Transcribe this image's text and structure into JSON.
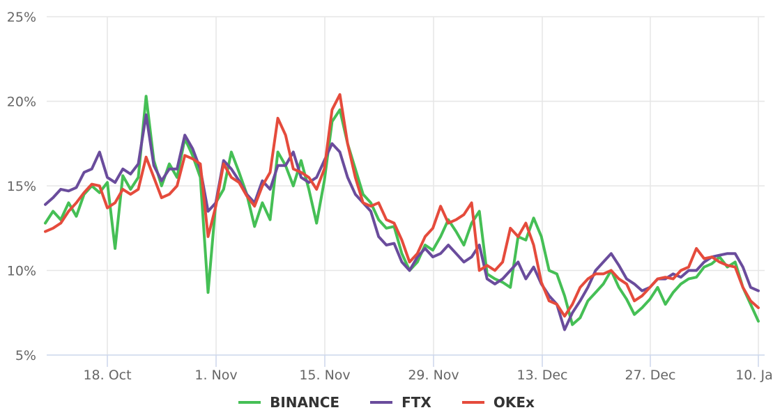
{
  "chart_data": {
    "type": "line",
    "title": "",
    "xlabel": "",
    "ylabel": "",
    "ylim": [
      5,
      25
    ],
    "yticks": [
      "5%",
      "10%",
      "15%",
      "20%",
      "25%"
    ],
    "ytick_values": [
      5,
      10,
      15,
      20,
      25
    ],
    "xticks": [
      "18. Oct",
      "1. Nov",
      "15. Nov",
      "29. Nov",
      "13. Dec",
      "27. Dec",
      "10. Jan"
    ],
    "x_start": "~10. Oct",
    "x_end": "~11. Jan",
    "grid": true,
    "legend_position": "bottom-center",
    "x_days": [
      0,
      1,
      2,
      3,
      4,
      5,
      6,
      7,
      8,
      9,
      10,
      11,
      12,
      13,
      14,
      15,
      16,
      17,
      18,
      19,
      20,
      21,
      22,
      23,
      24,
      25,
      26,
      27,
      28,
      29,
      30,
      31,
      32,
      33,
      34,
      35,
      36,
      37,
      38,
      39,
      40,
      41,
      42,
      43,
      44,
      45,
      46,
      47,
      48,
      49,
      50,
      51,
      52,
      53,
      54,
      55,
      56,
      57,
      58,
      59,
      60,
      61,
      62,
      63,
      64,
      65,
      66,
      67,
      68,
      69,
      70,
      71,
      72,
      73,
      74,
      75,
      76,
      77,
      78,
      79,
      80,
      81,
      82,
      83,
      84,
      85,
      86,
      87,
      88,
      89,
      90,
      91,
      92
    ],
    "series": [
      {
        "name": "BINANCE",
        "color": "#45BF55",
        "values": [
          12.8,
          13.5,
          13.0,
          14.0,
          13.2,
          14.5,
          15.0,
          14.6,
          15.2,
          11.3,
          15.6,
          14.8,
          15.5,
          20.3,
          16.5,
          15.0,
          16.3,
          15.5,
          17.8,
          16.8,
          15.5,
          8.7,
          14.0,
          14.8,
          17.0,
          15.8,
          14.5,
          12.6,
          14.0,
          13.0,
          17.0,
          16.2,
          15.0,
          16.5,
          14.8,
          12.8,
          15.3,
          18.8,
          19.5,
          17.5,
          16.0,
          14.5,
          14.0,
          13.0,
          12.5,
          12.6,
          11.0,
          10.0,
          10.5,
          11.5,
          11.2,
          12.0,
          13.0,
          12.3,
          11.5,
          12.8,
          13.5,
          9.8,
          9.5,
          9.3,
          9.0,
          12.0,
          11.8,
          13.1,
          12.0,
          10.0,
          9.8,
          8.5,
          6.8,
          7.2,
          8.2,
          8.7,
          9.2,
          10.0,
          9.0,
          8.3,
          7.4,
          7.8,
          8.3,
          9.0,
          8.0,
          8.7,
          9.2,
          9.5,
          9.6,
          10.2,
          10.4,
          10.8,
          10.2,
          10.5,
          9.0,
          8.0,
          7.0
        ]
      },
      {
        "name": "FTX",
        "color": "#6A4C9C",
        "values": [
          13.9,
          14.3,
          14.8,
          14.7,
          14.9,
          15.8,
          16.0,
          17.0,
          15.5,
          15.2,
          16.0,
          15.7,
          16.3,
          19.2,
          16.2,
          15.3,
          16.0,
          16.0,
          18.0,
          17.2,
          16.0,
          13.5,
          14.0,
          16.5,
          16.0,
          15.3,
          14.5,
          14.0,
          15.3,
          14.8,
          16.2,
          16.2,
          17.0,
          15.5,
          15.2,
          15.5,
          16.5,
          17.5,
          17.0,
          15.5,
          14.5,
          14.0,
          13.5,
          12.0,
          11.5,
          11.6,
          10.5,
          10.0,
          10.8,
          11.3,
          10.8,
          11.0,
          11.5,
          11.0,
          10.5,
          10.8,
          11.5,
          9.5,
          9.2,
          9.5,
          10.0,
          10.5,
          9.5,
          10.2,
          9.2,
          8.5,
          8.0,
          6.5,
          7.5,
          8.2,
          9.0,
          10.0,
          10.5,
          11.0,
          10.3,
          9.5,
          9.2,
          8.8,
          9.0,
          9.5,
          9.5,
          9.8,
          9.6,
          10.0,
          10.0,
          10.5,
          10.8,
          10.9,
          11.0,
          11.0,
          10.2,
          9.0,
          8.8
        ]
      },
      {
        "name": "OKEx",
        "color": "#E54B3C",
        "values": [
          12.3,
          12.5,
          12.8,
          13.5,
          14.0,
          14.6,
          15.1,
          15.0,
          13.7,
          14.0,
          14.8,
          14.5,
          14.8,
          16.7,
          15.5,
          14.3,
          14.5,
          15.0,
          16.8,
          16.6,
          16.3,
          12.0,
          13.8,
          16.3,
          15.5,
          15.2,
          14.4,
          13.8,
          15.0,
          15.8,
          19.0,
          18.0,
          16.0,
          15.8,
          15.5,
          14.8,
          16.0,
          19.5,
          20.4,
          17.5,
          15.5,
          14.0,
          13.8,
          14.0,
          13.0,
          12.8,
          11.8,
          10.5,
          11.0,
          12.0,
          12.5,
          13.8,
          12.8,
          13.0,
          13.3,
          14.0,
          10.0,
          10.3,
          10.0,
          10.5,
          12.5,
          12.0,
          12.8,
          11.5,
          9.3,
          8.2,
          8.0,
          7.3,
          8.0,
          9.0,
          9.5,
          9.8,
          9.8,
          10.0,
          9.5,
          9.2,
          8.2,
          8.5,
          9.0,
          9.5,
          9.6,
          9.5,
          10.0,
          10.2,
          11.3,
          10.7,
          10.8,
          10.5,
          10.3,
          10.2,
          9.0,
          8.2,
          7.8
        ]
      }
    ]
  },
  "legend": {
    "items": [
      {
        "label": "BINANCE",
        "color": "#45BF55"
      },
      {
        "label": "FTX",
        "color": "#6A4C9C"
      },
      {
        "label": "OKEx",
        "color": "#E54B3C"
      }
    ]
  }
}
